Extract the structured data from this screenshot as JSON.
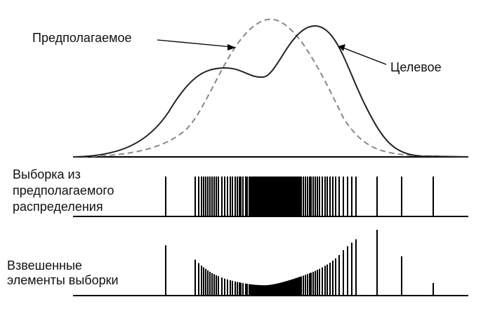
{
  "labels": {
    "proposal": "Предполагаемое",
    "target": "Целевое",
    "samples_line1": "Выборка из",
    "samples_line2": "предполагаемого",
    "samples_line3": "распределения",
    "weighted_line1": "Взвешенные",
    "weighted_line2": "элементы выборки"
  },
  "style": {
    "target_color": "#222222",
    "proposal_color": "#888888",
    "sample_color": "#000000"
  },
  "samples": [
    236,
    278,
    283,
    287,
    290,
    293,
    296,
    299,
    302,
    305,
    308,
    311,
    316,
    320,
    324,
    328,
    331,
    335,
    338,
    341,
    343,
    346,
    350,
    352,
    355,
    357,
    359,
    361,
    363,
    365,
    367,
    369,
    371,
    373,
    375,
    377,
    379,
    381,
    383,
    385,
    387,
    389,
    391,
    393,
    395,
    397,
    399,
    401,
    403,
    405,
    407,
    409,
    411,
    413,
    415,
    417,
    419,
    421,
    423,
    425,
    427,
    429,
    432,
    435,
    438,
    441,
    443,
    446,
    449,
    452,
    455,
    459,
    463,
    466,
    470,
    474,
    478,
    483,
    489,
    495,
    501,
    507,
    537,
    572,
    617
  ]
}
